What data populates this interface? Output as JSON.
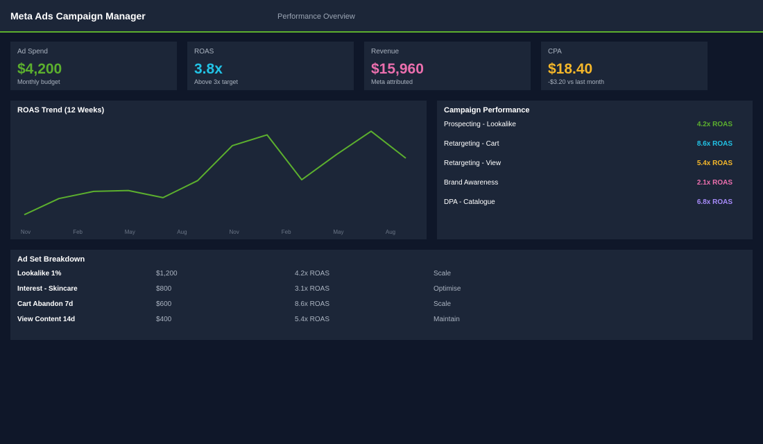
{
  "header": {
    "app_title": "Meta Ads Campaign Manager",
    "page_subtitle": "Performance Overview",
    "accent_color": "#5cb02e"
  },
  "kpis": [
    {
      "label": "Ad Spend",
      "value": "$4,200",
      "sub": "Monthly budget",
      "color": "#5cb02e"
    },
    {
      "label": "ROAS",
      "value": "3.8x",
      "sub": "Above 3x target",
      "color": "#22c3e6"
    },
    {
      "label": "Revenue",
      "value": "$15,960",
      "sub": "Meta attributed",
      "color": "#ec6fae"
    },
    {
      "label": "CPA",
      "value": "$18.40",
      "sub": "-$3.20 vs last month",
      "color": "#f5b72a"
    }
  ],
  "trend": {
    "title": "ROAS Trend (12 Weeks)",
    "line_color": "#5cb02e"
  },
  "campaigns": {
    "title": "Campaign Performance",
    "items": [
      {
        "name": "Prospecting - Lookalike",
        "roas": "4.2x ROAS",
        "color": "#5cb02e"
      },
      {
        "name": "Retargeting - Cart",
        "roas": "8.6x ROAS",
        "color": "#22c3e6"
      },
      {
        "name": "Retargeting - View",
        "roas": "5.4x ROAS",
        "color": "#f5b72a"
      },
      {
        "name": "Brand Awareness",
        "roas": "2.1x ROAS",
        "color": "#ec6fae"
      },
      {
        "name": "DPA - Catalogue",
        "roas": "6.8x ROAS",
        "color": "#a78bfa"
      }
    ]
  },
  "adsets": {
    "title": "Ad Set Breakdown",
    "rows": [
      {
        "name": "Lookalike 1%",
        "spend": "$1,200",
        "roas": "4.2x ROAS",
        "action": "Scale"
      },
      {
        "name": "Interest - Skincare",
        "spend": "$800",
        "roas": "3.1x ROAS",
        "action": "Optimise"
      },
      {
        "name": "Cart Abandon 7d",
        "spend": "$600",
        "roas": "8.6x ROAS",
        "action": "Scale"
      },
      {
        "name": "View Content 14d",
        "spend": "$400",
        "roas": "5.4x ROAS",
        "action": "Maintain"
      }
    ]
  },
  "chart_data": {
    "type": "line",
    "title": "ROAS Trend (12 Weeks)",
    "xlabel": "",
    "ylabel": "",
    "x_tick_labels": [
      "Nov",
      "Feb",
      "May",
      "Aug",
      "Nov",
      "Feb",
      "May",
      "Aug"
    ],
    "y_axis_shown": false,
    "grid": false,
    "series": [
      {
        "values": [
          2.1,
          3.0,
          3.4,
          3.45,
          3.05,
          4.0,
          5.95,
          6.55,
          4.05,
          5.45,
          6.75,
          5.25
        ]
      }
    ],
    "ylim": [
      1.5,
      7.3
    ]
  }
}
